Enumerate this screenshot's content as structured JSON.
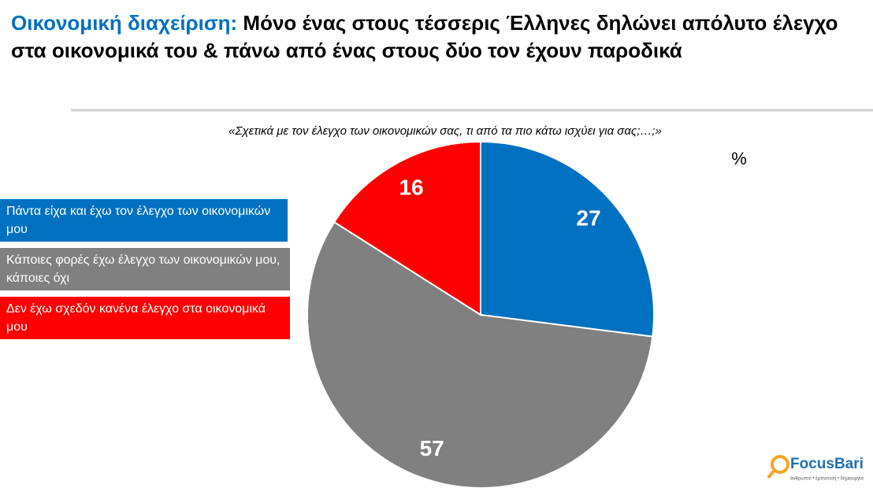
{
  "chart_data": {
    "type": "pie",
    "title_prefix": "Οικονομική διαχείριση:",
    "title": "Μόνο ένας στους τέσσερις Έλληνες δηλώνει απόλυτο έλεγχο στα  οικονομικά του & πάνω από ένας στους δύο τον έχουν παροδικά",
    "subtitle": "«Σχετικά με τον έλεγχο των οικονομικών σας, τι από τα πιο κάτω ισχύει για σας;…;»",
    "unit_label": "%",
    "categories": [
      "Πάντα είχα και έχω τον έλεγχο των οικονομικών μου",
      "Κάποιες φορές έχω έλεγχο των οικονομικών μου, κάποιες όχι",
      "Δεν έχω σχεδόν κανένα έλεγχο στα οικονομικά μου"
    ],
    "values": [
      27,
      57,
      16
    ],
    "colors": [
      "#0070c0",
      "#808080",
      "#ff0000"
    ]
  },
  "logo": {
    "name": "FocusBari",
    "tagline": "άνθρωποι • έμπνευση • δημιουργία"
  }
}
